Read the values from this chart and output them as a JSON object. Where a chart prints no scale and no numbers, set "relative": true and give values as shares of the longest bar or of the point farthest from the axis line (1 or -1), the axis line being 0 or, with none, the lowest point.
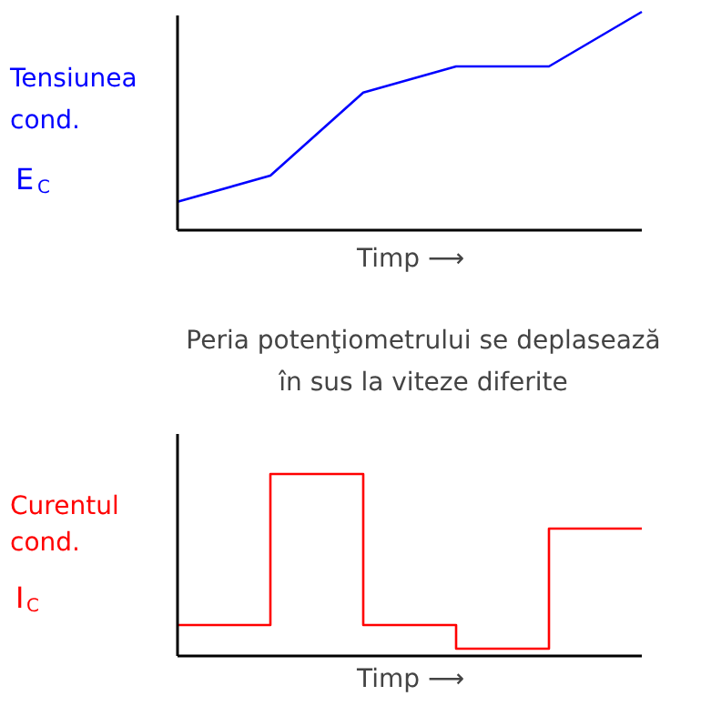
{
  "chart_data": [
    {
      "type": "line",
      "relative": true,
      "ylabel": "Tensiunea\ncond.\nE$_{C}$",
      "xlabel": "Timp ⟶",
      "categories": [
        null,
        null,
        null,
        null,
        null,
        null
      ],
      "series": [
        {
          "color": "#0000ff",
          "values": [
            0.13,
            0.25,
            0.63,
            0.75,
            0.75,
            1.0
          ]
        }
      ]
    },
    {
      "type": "step",
      "relative": true,
      "title": "Peria potenţiometrului se deplasează\nîn sus la viteze diferite",
      "ylabel": "Curentul\ncond.\nI$_{C}$",
      "xlabel": "Timp ⟶",
      "categories": [
        null,
        null,
        null,
        null,
        null,
        null
      ],
      "series": [
        {
          "color": "#ff0000",
          "values": [
            0.17,
            1.0,
            0.17,
            0.04,
            0.7,
            0.7
          ]
        }
      ]
    }
  ]
}
